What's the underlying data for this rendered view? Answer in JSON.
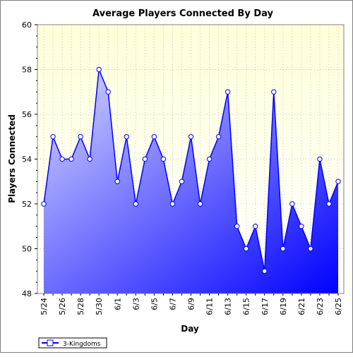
{
  "chart_data": {
    "type": "area",
    "title": "Average Players Connected By Day",
    "xlabel": "Day",
    "ylabel": "Players Connected",
    "ylim": [
      48,
      60
    ],
    "y_ticks": [
      48,
      50,
      52,
      54,
      56,
      58,
      60
    ],
    "x": [
      "5/24",
      "5/25",
      "5/26",
      "5/27",
      "5/28",
      "5/29",
      "5/30",
      "5/31",
      "6/1",
      "6/2",
      "6/3",
      "6/4",
      "6/5",
      "6/6",
      "6/7",
      "6/8",
      "6/9",
      "6/10",
      "6/11",
      "6/12",
      "6/13",
      "6/14",
      "6/15",
      "6/16",
      "6/17",
      "6/18",
      "6/19",
      "6/20",
      "6/21",
      "6/22",
      "6/23",
      "6/24",
      "6/25"
    ],
    "x_tick_labels": [
      "5/24",
      "5/26",
      "5/28",
      "5/30",
      "6/1",
      "6/3",
      "6/5",
      "6/7",
      "6/9",
      "6/11",
      "6/13",
      "6/15",
      "6/17",
      "6/19",
      "6/21",
      "6/23",
      "6/25"
    ],
    "series": [
      {
        "name": "3-Kingdoms",
        "values": [
          52,
          55,
          54,
          54,
          55,
          54,
          58,
          57,
          53,
          55,
          52,
          54,
          55,
          54,
          52,
          53,
          55,
          52,
          54,
          55,
          57,
          51,
          50,
          51,
          49,
          57,
          50,
          52,
          51,
          50,
          54,
          52,
          53
        ],
        "color": "#0000ff"
      }
    ],
    "grid": true,
    "legend_position": "bottom-left",
    "colors": {
      "plot_bg_top": "#ffffd9",
      "plot_bg_bottom": "#ffffff",
      "grid": "#c8c8c8",
      "line": "#0000ff",
      "fill_light": "#d8d8ff",
      "fill_dark": "#0000ff"
    }
  }
}
